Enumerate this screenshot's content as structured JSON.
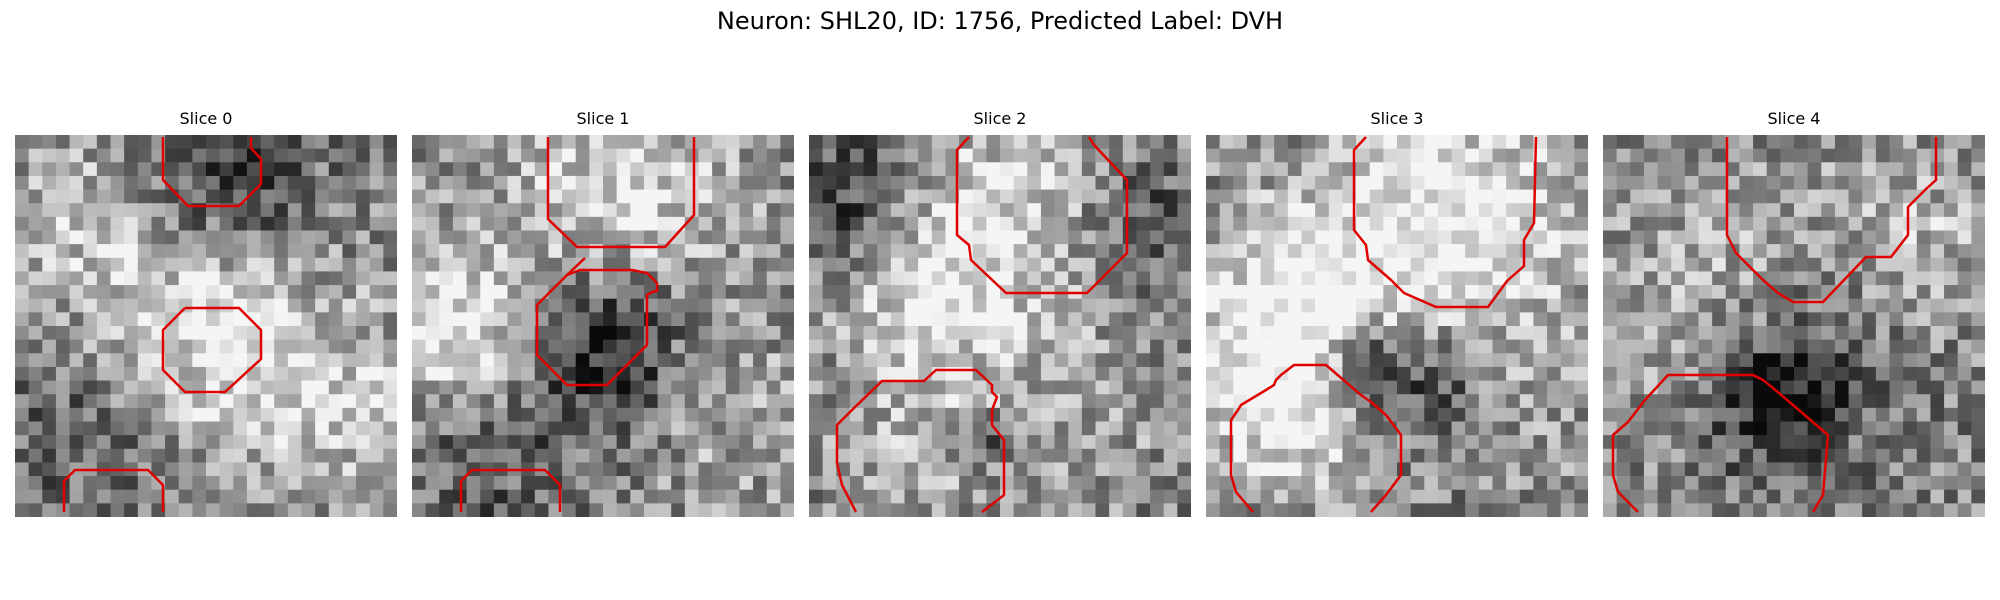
{
  "figure": {
    "title": "Neuron: SHL20, ID: 1756, Predicted Label: DVH"
  },
  "colors": {
    "contour": "#e00000"
  },
  "panels": [
    {
      "title": "Slice 0",
      "seed": 11,
      "blobs": [
        [
          0.55,
          0.55,
          0.18,
          0.35
        ],
        [
          0.22,
          0.28,
          0.2,
          0.25
        ],
        [
          0.55,
          0.1,
          0.15,
          -0.35
        ],
        [
          0.85,
          0.7,
          0.2,
          0.2
        ],
        [
          0.15,
          0.75,
          0.2,
          -0.15
        ]
      ]
    },
    {
      "title": "Slice 1",
      "seed": 23,
      "blobs": [
        [
          0.55,
          0.18,
          0.22,
          0.35
        ],
        [
          0.15,
          0.52,
          0.17,
          0.45
        ],
        [
          0.48,
          0.55,
          0.17,
          -0.5
        ],
        [
          0.8,
          0.75,
          0.2,
          0.15
        ],
        [
          0.15,
          0.85,
          0.15,
          -0.2
        ]
      ]
    },
    {
      "title": "Slice 2",
      "seed": 37,
      "blobs": [
        [
          0.55,
          0.22,
          0.22,
          0.35
        ],
        [
          0.85,
          0.25,
          0.15,
          -0.3
        ],
        [
          0.3,
          0.45,
          0.15,
          0.25
        ],
        [
          0.3,
          0.8,
          0.18,
          0.15
        ],
        [
          0.45,
          0.8,
          0.05,
          -0.35
        ],
        [
          0.75,
          0.7,
          0.18,
          0.1
        ],
        [
          0.1,
          0.15,
          0.12,
          -0.3
        ]
      ]
    },
    {
      "title": "Slice 3",
      "seed": 41,
      "blobs": [
        [
          0.25,
          0.5,
          0.2,
          0.55
        ],
        [
          0.42,
          0.6,
          0.1,
          -0.5
        ],
        [
          0.65,
          0.2,
          0.22,
          0.45
        ],
        [
          0.2,
          0.75,
          0.15,
          0.25
        ],
        [
          0.6,
          0.65,
          0.12,
          -0.25
        ],
        [
          0.9,
          0.6,
          0.2,
          0.1
        ]
      ]
    },
    {
      "title": "Slice 4",
      "seed": 53,
      "blobs": [
        [
          0.45,
          0.7,
          0.12,
          -0.45
        ],
        [
          0.3,
          0.3,
          0.2,
          0.15
        ],
        [
          0.65,
          0.5,
          0.2,
          -0.15
        ],
        [
          0.8,
          0.3,
          0.18,
          0.25
        ],
        [
          0.2,
          0.6,
          0.15,
          0.1
        ]
      ]
    }
  ]
}
